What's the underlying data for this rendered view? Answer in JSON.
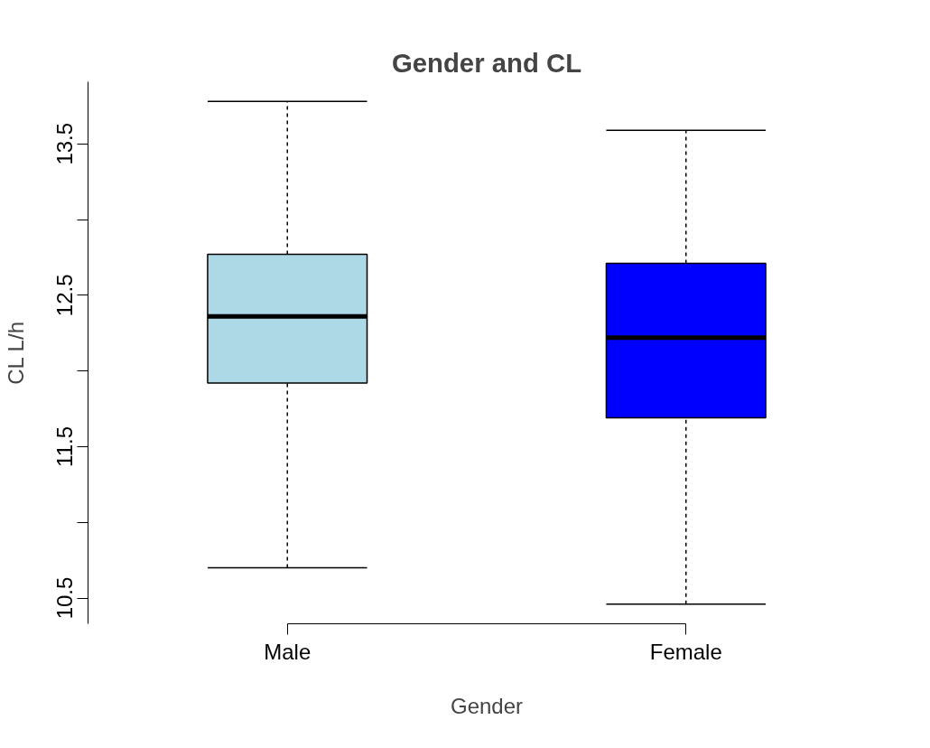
{
  "chart_data": {
    "type": "box",
    "title": "Gender and CL",
    "xlabel": "Gender",
    "ylabel": "CL L/h",
    "categories": [
      "Male",
      "Female"
    ],
    "colors": [
      "#add8e6",
      "#0000ff"
    ],
    "boxes": [
      {
        "low": 10.7,
        "q1": 11.92,
        "median": 12.36,
        "q3": 12.77,
        "high": 13.78
      },
      {
        "low": 10.46,
        "q1": 11.69,
        "median": 12.22,
        "q3": 12.71,
        "high": 13.59
      }
    ],
    "ylim": [
      10.33,
      13.91
    ],
    "yticks": [
      10.5,
      {
        "value": 11,
        "label": null
      },
      11.5,
      {
        "value": 12,
        "label": null
      },
      12.5,
      {
        "value": 13,
        "label": null
      },
      13.5
    ],
    "grid": false
  }
}
